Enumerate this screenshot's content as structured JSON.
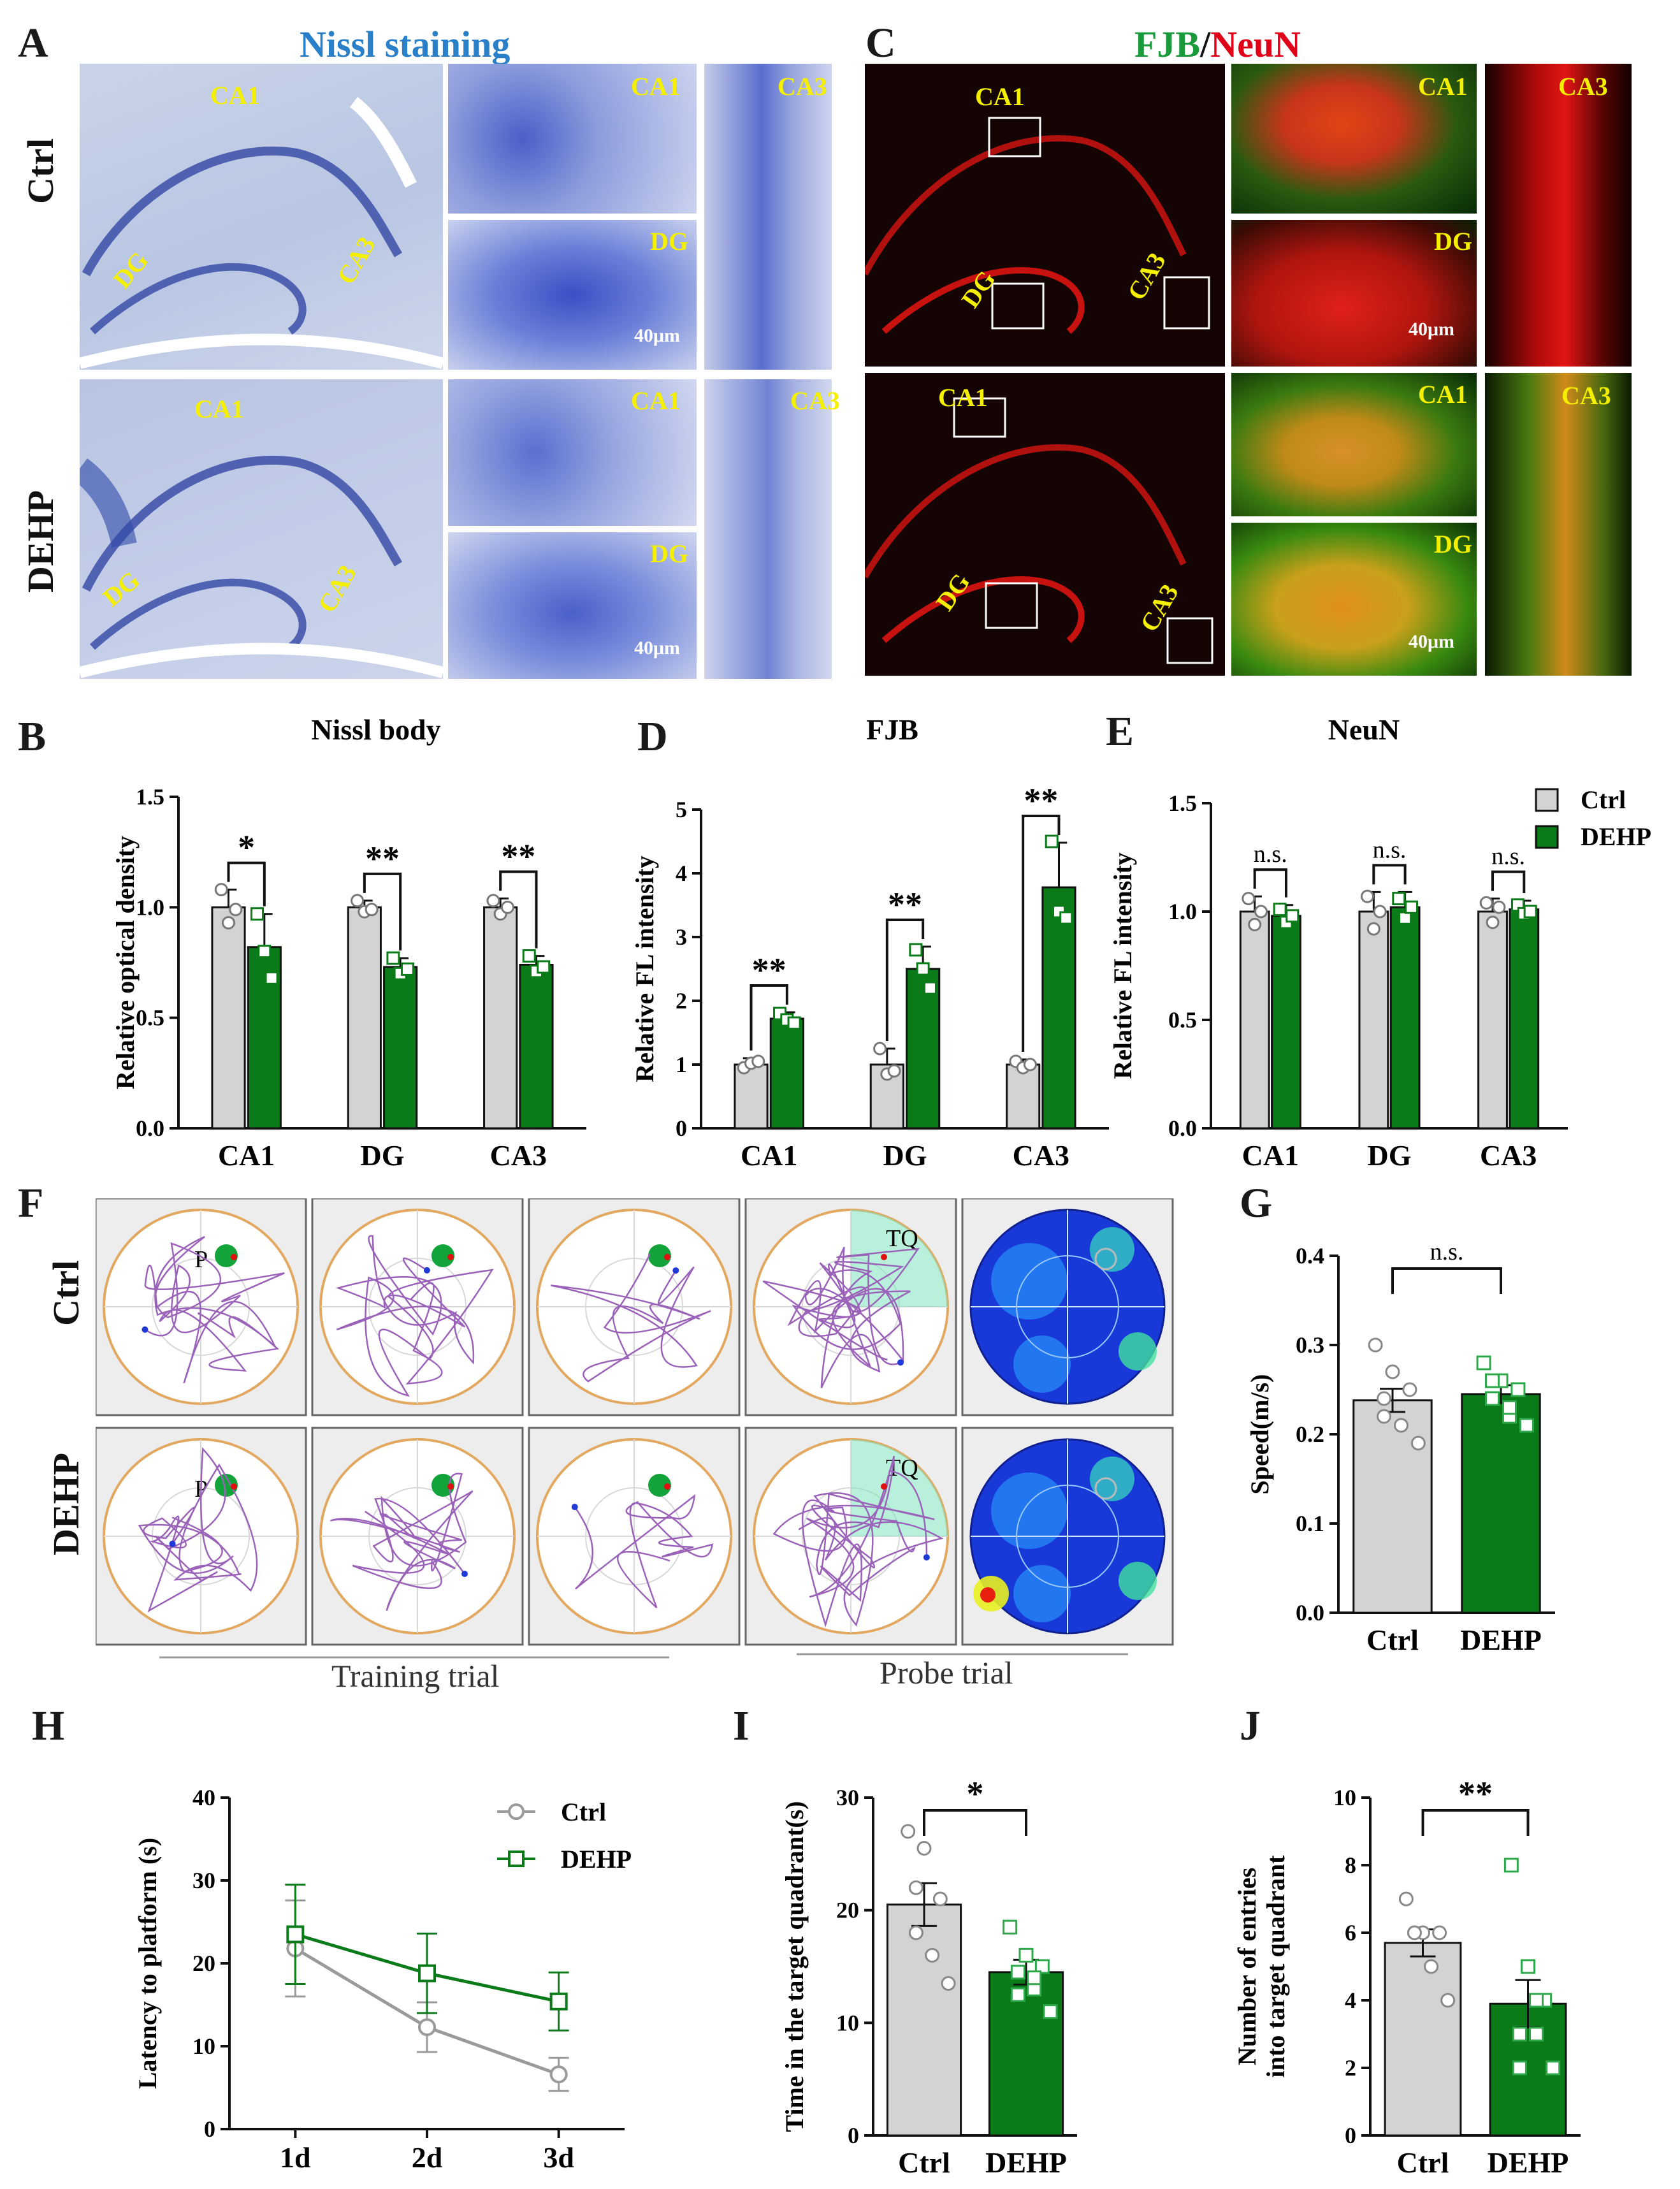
{
  "panels": {
    "A": {
      "letter": "A",
      "title": "Nissl staining",
      "rows": [
        "Ctrl",
        "DEHP"
      ],
      "regions": {
        "ca1": "CA1",
        "dg": "DG",
        "ca3": "CA3"
      },
      "scale": "40μm"
    },
    "B": {
      "letter": "B"
    },
    "C": {
      "letter": "C",
      "title_a": "FJB",
      "title_sep": "/",
      "title_b": "NeuN",
      "regions": {
        "ca1": "CA1",
        "dg": "DG",
        "ca3": "CA3"
      },
      "scale": "40μm"
    },
    "D": {
      "letter": "D"
    },
    "E": {
      "letter": "E"
    },
    "F": {
      "letter": "F",
      "rows": [
        "Ctrl",
        "DEHP"
      ],
      "platform": "P",
      "quadrant": "TQ",
      "training": "Training trial",
      "probe": "Probe trial"
    },
    "G": {
      "letter": "G"
    },
    "H": {
      "letter": "H"
    },
    "I": {
      "letter": "I"
    },
    "J": {
      "letter": "J"
    }
  },
  "legend": {
    "ctrl": "Ctrl",
    "dehp": "DEHP"
  },
  "colors": {
    "ctrl": "#d3d3d3",
    "dehp": "#0b7a18",
    "nissl": "#3a5fc4",
    "fjb": "#1a9a3a",
    "neun": "#e0001a",
    "label": "#f5f000"
  },
  "chart_data": [
    {
      "id": "B",
      "type": "bar",
      "title": "Nissl body",
      "ylabel": "Relative optical density",
      "categories": [
        "CA1",
        "DG",
        "CA3"
      ],
      "ylim": [
        0,
        1.5
      ],
      "yticks": [
        "0.0",
        "0.5",
        "1.0",
        "1.5"
      ],
      "series": [
        {
          "name": "Ctrl",
          "values": [
            1.0,
            1.0,
            1.0
          ],
          "err": [
            0.08,
            0.03,
            0.04
          ],
          "points": [
            [
              1.08,
              0.93,
              0.99
            ],
            [
              1.03,
              0.98,
              0.99
            ],
            [
              1.03,
              0.97,
              1.0
            ]
          ]
        },
        {
          "name": "DEHP",
          "values": [
            0.82,
            0.73,
            0.74
          ],
          "err": [
            0.15,
            0.04,
            0.04
          ],
          "points": [
            [
              0.97,
              0.8,
              0.68
            ],
            [
              0.77,
              0.7,
              0.72
            ],
            [
              0.78,
              0.71,
              0.73
            ]
          ]
        }
      ],
      "sig": [
        "*",
        "**",
        "**"
      ]
    },
    {
      "id": "D",
      "type": "bar",
      "title": "FJB",
      "ylabel": "Relative FL intensity",
      "categories": [
        "CA1",
        "DG",
        "CA3"
      ],
      "ylim": [
        0,
        5
      ],
      "yticks": [
        "0",
        "1",
        "2",
        "3",
        "4",
        "5"
      ],
      "series": [
        {
          "name": "Ctrl",
          "values": [
            1.0,
            1.0,
            1.0
          ],
          "err": [
            0.1,
            0.25,
            0.08
          ],
          "points": [
            [
              0.95,
              1.02,
              1.05
            ],
            [
              1.25,
              0.85,
              0.9
            ],
            [
              1.05,
              0.95,
              1.0
            ]
          ]
        },
        {
          "name": "DEHP",
          "values": [
            1.72,
            2.5,
            3.78
          ],
          "err": [
            0.1,
            0.35,
            0.7
          ],
          "points": [
            [
              1.8,
              1.7,
              1.65
            ],
            [
              2.8,
              2.5,
              2.2
            ],
            [
              4.5,
              3.4,
              3.3
            ]
          ]
        }
      ],
      "sig": [
        "**",
        "**",
        "**"
      ]
    },
    {
      "id": "E",
      "type": "bar",
      "title": "NeuN",
      "ylabel": "Relative FL intensity",
      "categories": [
        "CA1",
        "DG",
        "CA3"
      ],
      "ylim": [
        0,
        1.5
      ],
      "yticks": [
        "0.0",
        "0.5",
        "1.0",
        "1.5"
      ],
      "series": [
        {
          "name": "Ctrl",
          "values": [
            1.0,
            1.0,
            1.0
          ],
          "err": [
            0.07,
            0.09,
            0.06
          ],
          "points": [
            [
              1.06,
              0.94,
              1.0
            ],
            [
              1.07,
              0.92,
              1.0
            ],
            [
              1.04,
              0.95,
              1.02
            ]
          ]
        },
        {
          "name": "DEHP",
          "values": [
            0.98,
            1.02,
            1.01
          ],
          "err": [
            0.05,
            0.07,
            0.04
          ],
          "points": [
            [
              1.01,
              0.95,
              0.98
            ],
            [
              1.06,
              0.97,
              1.02
            ],
            [
              1.03,
              0.99,
              1.0
            ]
          ]
        }
      ],
      "sig": [
        "n.s.",
        "n.s.",
        "n.s."
      ]
    },
    {
      "id": "G",
      "type": "bar",
      "ylabel": "Speed(m/s)",
      "categories": [
        "Ctrl",
        "DEHP"
      ],
      "ylim": [
        0,
        0.4
      ],
      "yticks": [
        "0.0",
        "0.1",
        "0.2",
        "0.3",
        "0.4"
      ],
      "values": [
        0.238,
        0.245
      ],
      "err": [
        0.013,
        0.01
      ],
      "points": [
        [
          0.3,
          0.27,
          0.25,
          0.24,
          0.21,
          0.19,
          0.22
        ],
        [
          0.28,
          0.26,
          0.25,
          0.24,
          0.22,
          0.21,
          0.26,
          0.23
        ]
      ],
      "sig": "n.s."
    },
    {
      "id": "H",
      "type": "line",
      "ylabel": "Latency to platform (s)",
      "categories": [
        "1d",
        "2d",
        "3d"
      ],
      "ylim": [
        0,
        40
      ],
      "yticks": [
        "0",
        "10",
        "20",
        "30",
        "40"
      ],
      "series": [
        {
          "name": "Ctrl",
          "values": [
            21.8,
            12.3,
            6.6
          ],
          "err": [
            5.8,
            3.0,
            2.0
          ]
        },
        {
          "name": "DEHP",
          "values": [
            23.5,
            18.8,
            15.4
          ],
          "err": [
            6.0,
            4.8,
            3.5
          ]
        }
      ]
    },
    {
      "id": "I",
      "type": "bar",
      "ylabel": "Time in the target quadrant(s)",
      "categories": [
        "Ctrl",
        "DEHP"
      ],
      "ylim": [
        0,
        30
      ],
      "yticks": [
        "0",
        "10",
        "20",
        "30"
      ],
      "values": [
        20.5,
        14.5
      ],
      "err": [
        1.9,
        1.1
      ],
      "points": [
        [
          27,
          25.5,
          21,
          18,
          16,
          13.5,
          22
        ],
        [
          18.5,
          16,
          15,
          14.5,
          13,
          11,
          12.5,
          14
        ]
      ],
      "sig": "*"
    },
    {
      "id": "J",
      "type": "bar",
      "ylabel": "Number of entries",
      "ylabel2": "into target quadrant",
      "categories": [
        "Ctrl",
        "DEHP"
      ],
      "ylim": [
        0,
        10
      ],
      "yticks": [
        "0",
        "2",
        "4",
        "6",
        "8",
        "10"
      ],
      "values": [
        5.7,
        3.9
      ],
      "err": [
        0.4,
        0.7
      ],
      "points": [
        [
          7,
          6,
          6,
          6,
          5,
          4,
          6
        ],
        [
          8,
          5,
          4,
          3,
          3,
          2,
          2,
          4
        ]
      ],
      "sig": "**"
    }
  ]
}
